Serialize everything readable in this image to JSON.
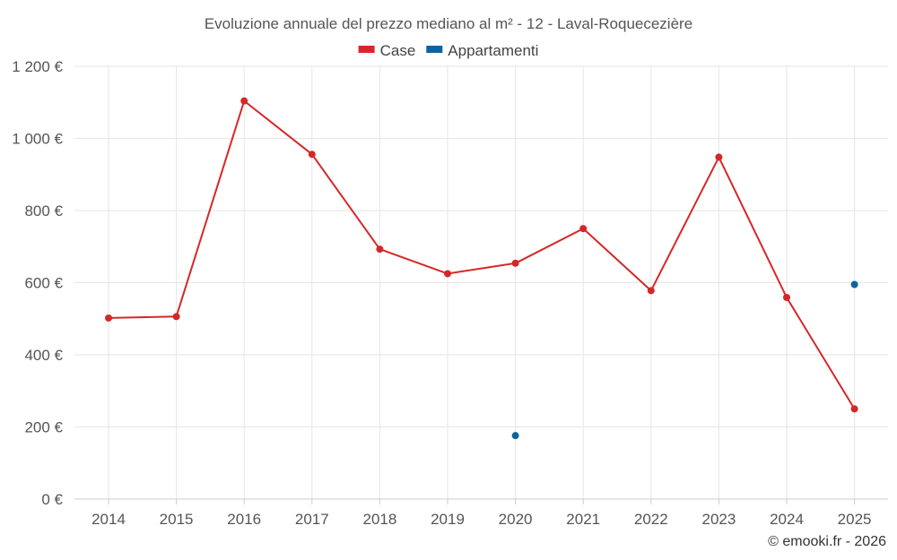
{
  "chart_data": {
    "type": "line",
    "title": "Evoluzione annuale del prezzo mediano al m² - 12 - Laval-Roquecezière",
    "categories": [
      "2014",
      "2015",
      "2016",
      "2017",
      "2018",
      "2019",
      "2020",
      "2021",
      "2022",
      "2023",
      "2024",
      "2025"
    ],
    "ylim": [
      0,
      1200
    ],
    "y_ticks": [
      0,
      200,
      400,
      600,
      800,
      1000,
      1200
    ],
    "y_tick_labels": [
      "0 €",
      "200 €",
      "400 €",
      "600 €",
      "800 €",
      "1 000 €",
      "1 200 €"
    ],
    "legend_position": "top-center",
    "series": [
      {
        "name": "Case",
        "color": "#d62728",
        "values": [
          502,
          506,
          1104,
          956,
          693,
          625,
          654,
          750,
          578,
          948,
          559,
          250
        ]
      },
      {
        "name": "Appartamenti",
        "color": "#0b64a0",
        "values": [
          null,
          null,
          null,
          null,
          null,
          null,
          176,
          null,
          null,
          null,
          null,
          595
        ]
      }
    ],
    "credit": "© emooki.fr - 2026"
  }
}
